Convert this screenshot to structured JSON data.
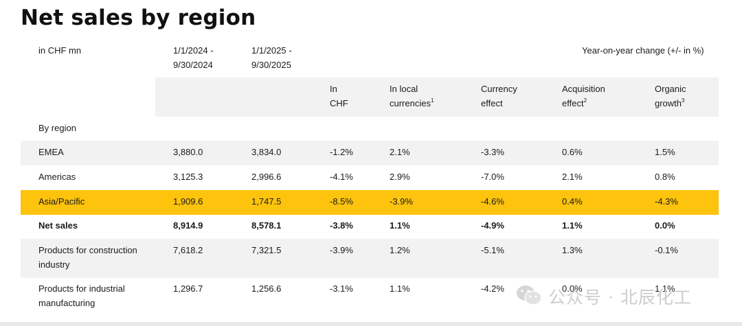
{
  "title": "Net sales by region",
  "unit_label": "in CHF mn",
  "period_prev": [
    "1/1/2024 -",
    "9/30/2024"
  ],
  "period_curr": [
    "1/1/2025 -",
    "9/30/2025"
  ],
  "yoy_label": "Year-on-year change (+/- in %)",
  "columns": {
    "in_chf": [
      "In",
      "CHF"
    ],
    "local": [
      "In local",
      "currencies"
    ],
    "local_sup": "1",
    "currency": [
      "Currency",
      "effect"
    ],
    "acquisition": [
      "Acquisition",
      "effect"
    ],
    "acquisition_sup": "2",
    "organic": [
      "Organic",
      "growth"
    ],
    "organic_sup": "3"
  },
  "section_label": "By region",
  "rows": [
    {
      "label": [
        "EMEA"
      ],
      "prev": "3,880.0",
      "curr": "3,834.0",
      "chf": "-1.2%",
      "local": "2.1%",
      "currency": "-3.3%",
      "acq": "0.6%",
      "organic": "1.5%"
    },
    {
      "label": [
        "Americas"
      ],
      "prev": "3,125.3",
      "curr": "2,996.6",
      "chf": "-4.1%",
      "local": "2.9%",
      "currency": "-7.0%",
      "acq": "2.1%",
      "organic": "0.8%"
    },
    {
      "label": [
        "Asia/Pacific"
      ],
      "prev": "1,909.6",
      "curr": "1,747.5",
      "chf": "-8.5%",
      "local": "-3.9%",
      "currency": "-4.6%",
      "acq": "0.4%",
      "organic": "-4.3%"
    },
    {
      "label": [
        "Net sales"
      ],
      "prev": "8,914.9",
      "curr": "8,578.1",
      "chf": "-3.8%",
      "local": "1.1%",
      "currency": "-4.9%",
      "acq": "1.1%",
      "organic": "0.0%"
    },
    {
      "label": [
        "Products for construction",
        "industry"
      ],
      "prev": "7,618.2",
      "curr": "7,321.5",
      "chf": "-3.9%",
      "local": "1.2%",
      "currency": "-5.1%",
      "acq": "1.3%",
      "organic": "-0.1%"
    },
    {
      "label": [
        "Products for industrial",
        "manufacturing"
      ],
      "prev": "1,296.7",
      "curr": "1,256.6",
      "chf": "-3.1%",
      "local": "1.1%",
      "currency": "-4.2%",
      "acq": "0.0%",
      "organic": "1.1%"
    }
  ],
  "watermark": {
    "text": "公众号 · 北辰化工",
    "icon": "wechat-icon",
    "color": "#cdcdcd"
  },
  "colors": {
    "highlight": "#fdc30d",
    "band": "#f2f2f2"
  }
}
